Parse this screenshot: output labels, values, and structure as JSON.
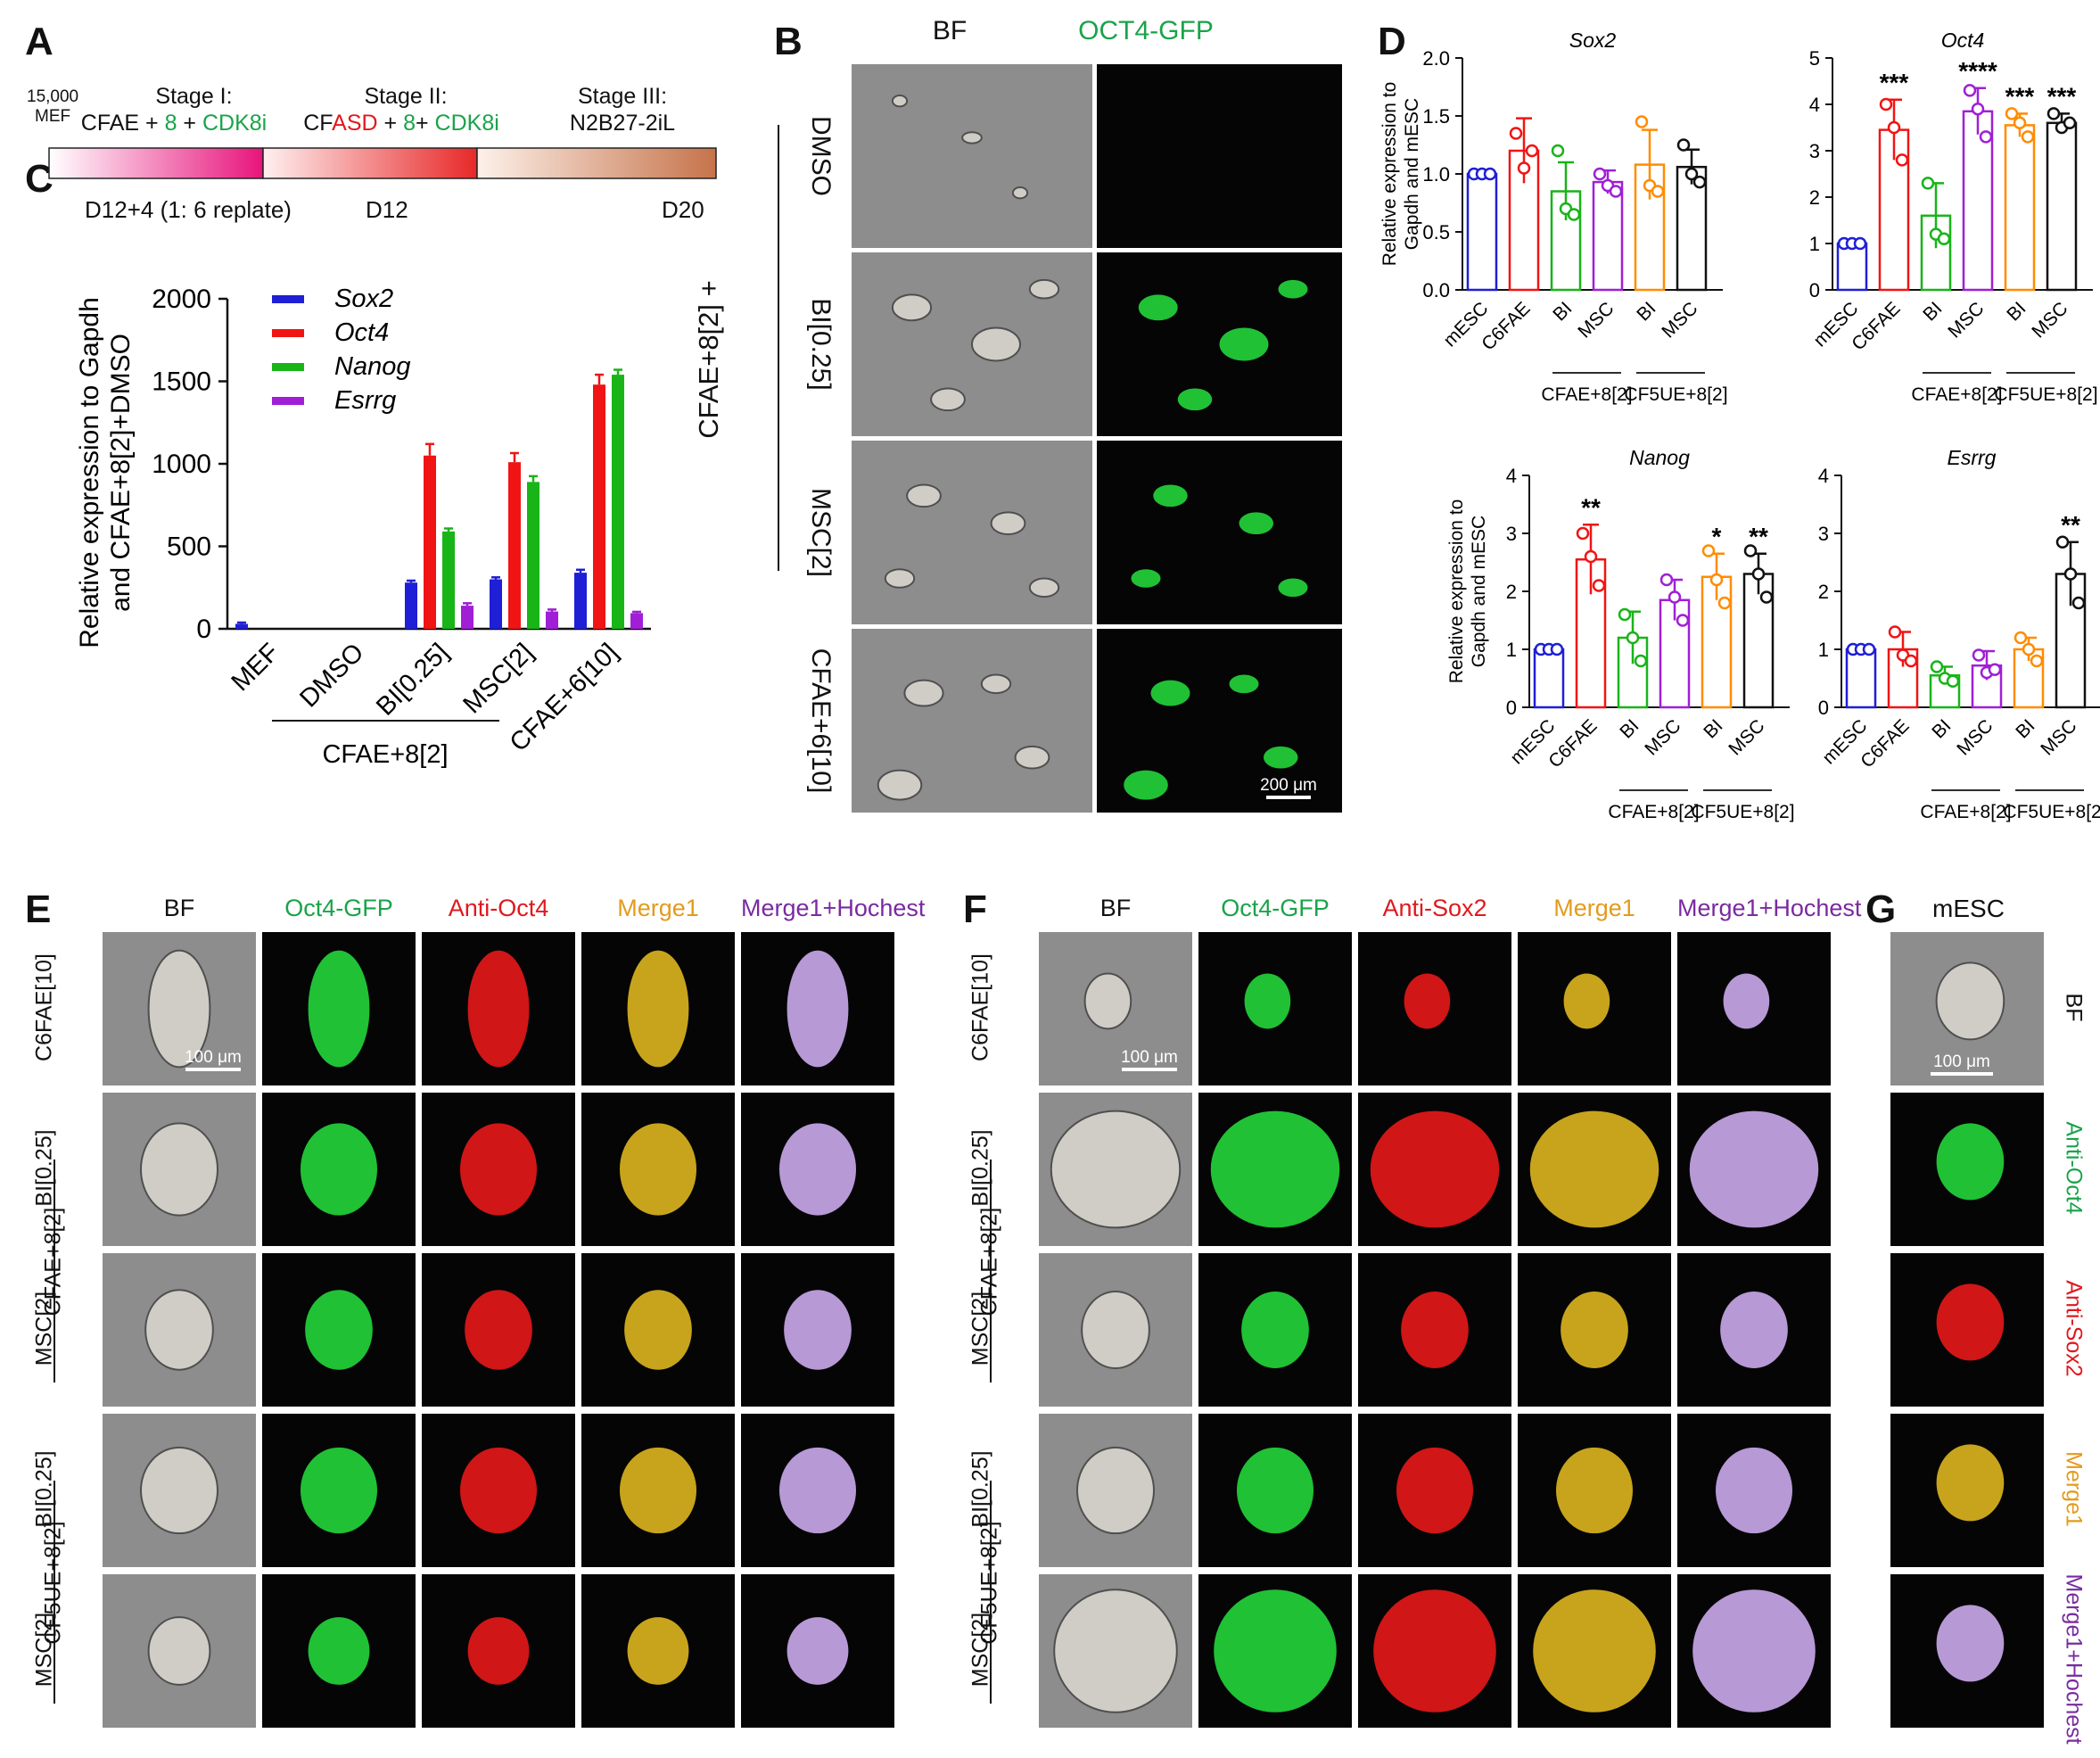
{
  "panel_labels": {
    "A": "A",
    "B": "B",
    "C": "C",
    "D": "D",
    "E": "E",
    "F": "F",
    "G": "G"
  },
  "panelA": {
    "start": "15,000\nMEF",
    "stage1_title": "Stage I:",
    "stage1_parts": [
      {
        "t": "CFAE + ",
        "c": "#111111"
      },
      {
        "t": "8",
        "c": "#1aa34a"
      },
      {
        "t": " + ",
        "c": "#111111"
      },
      {
        "t": "CDK8i",
        "c": "#1aa34a"
      }
    ],
    "stage2_title": "Stage II:",
    "stage2_parts": [
      {
        "t": "CF",
        "c": "#111111"
      },
      {
        "t": "ASD",
        "c": "#e0191f"
      },
      {
        "t": " + ",
        "c": "#111111"
      },
      {
        "t": "8",
        "c": "#1aa34a"
      },
      {
        "t": "+ ",
        "c": "#111111"
      },
      {
        "t": "CDK8i",
        "c": "#1aa34a"
      }
    ],
    "stage3_title": "Stage III:",
    "stage3_sub": "N2B27-2iL",
    "bottom_labels": [
      "D12+4 (1: 6 replate)",
      "D12",
      "D20"
    ]
  },
  "panelB": {
    "col_headers": [
      "BF",
      "OCT4-GFP"
    ],
    "col_header_colors": [
      "#111111",
      "#1aa34a"
    ],
    "row_labels": [
      "DMSO",
      "BI[0.25]",
      "MSC[2]",
      "CFAE+6[10]"
    ],
    "group_label": "CFAE+8[2] +",
    "scale": "200 μm"
  },
  "panelE": {
    "col_headers": [
      "BF",
      "Oct4-GFP",
      "Anti-Oct4",
      "Merge1",
      "Merge1+Hochest"
    ],
    "col_header_colors": [
      "#111111",
      "#1aa34a",
      "#e0191f",
      "#e39b1c",
      "#7a2aa0"
    ],
    "row_labels": [
      "C6FAE[10]",
      "BI[0.25]",
      "MSC[2]",
      "BI[0.25]",
      "MSC[2]"
    ],
    "group_labels": [
      "CFAE+8[2]",
      "CF5UE+8[2]"
    ],
    "scale": "100 μm"
  },
  "panelF": {
    "col_headers": [
      "BF",
      "Oct4-GFP",
      "Anti-Sox2",
      "Merge1",
      "Merge1+Hochest"
    ],
    "col_header_colors": [
      "#111111",
      "#1aa34a",
      "#e0191f",
      "#e39b1c",
      "#7a2aa0"
    ],
    "row_labels": [
      "C6FAE[10]",
      "BI[0.25]",
      "MSC[2]",
      "BI[0.25]",
      "MSC[2]"
    ],
    "group_labels": [
      "CFAE+8[2]",
      "CF5UE+8[2]"
    ],
    "scale": "100 μm"
  },
  "panelG": {
    "title": "mESC",
    "row_labels": [
      "BF",
      "Anti-Oct4",
      "Anti-Sox2",
      "Merge1",
      "Merge1+Hochest"
    ],
    "row_label_colors": [
      "#111111",
      "#1aa34a",
      "#e0191f",
      "#e39b1c",
      "#7a2aa0"
    ],
    "scale": "100 μm"
  },
  "chart_data": [
    {
      "panel": "C",
      "type": "bar",
      "ylabel_line1": "Relative expression to Gapdh",
      "ylabel_line2": "and  CFAE+8[2]+DMSO",
      "ylim": [
        0,
        2000
      ],
      "yticks": [
        0,
        500,
        1000,
        1500,
        2000
      ],
      "categories": [
        "MEF",
        "DMSO",
        "BI[0.25]",
        "MSC[2]",
        "CFAE+6[10]"
      ],
      "group_label": "CFAE+8[2]",
      "legend_position": "top-left",
      "series": [
        {
          "name": "Sox2",
          "color": "#1f1fd6",
          "values": [
            30,
            0,
            280,
            300,
            340
          ],
          "err": [
            8,
            0,
            12,
            12,
            18
          ]
        },
        {
          "name": "Oct4",
          "color": "#f01414",
          "values": [
            0,
            0,
            1050,
            1010,
            1480
          ],
          "err": [
            0,
            0,
            70,
            55,
            60
          ]
        },
        {
          "name": "Nanog",
          "color": "#18b418",
          "values": [
            0,
            0,
            590,
            890,
            1540
          ],
          "err": [
            0,
            0,
            18,
            35,
            30
          ]
        },
        {
          "name": "Esrrg",
          "color": "#a01fd6",
          "values": [
            0,
            0,
            140,
            105,
            95
          ],
          "err": [
            0,
            0,
            15,
            12,
            8
          ]
        }
      ]
    },
    {
      "panel": "D",
      "type": "bar",
      "title": "Sox2",
      "ylabel_line1": "Relative  expression to",
      "ylabel_line2": "Gapdh and mESC",
      "ylim": [
        0,
        2.0
      ],
      "yticks": [
        "0.0",
        "0.5",
        "1.0",
        "1.5",
        "2.0"
      ],
      "categories": [
        "mESC",
        "C6FAE",
        "BI",
        "MSC",
        "BI",
        "MSC"
      ],
      "colors": [
        "#1f1fd6",
        "#f01414",
        "#18b418",
        "#a01fd6",
        "#ff8c00",
        "#111111"
      ],
      "values": [
        1.0,
        1.2,
        0.85,
        0.93,
        1.08,
        1.06
      ],
      "err": [
        0.02,
        0.28,
        0.25,
        0.1,
        0.3,
        0.15
      ],
      "points": [
        [
          1.0,
          1.0,
          1.0
        ],
        [
          1.35,
          1.05,
          1.2
        ],
        [
          1.2,
          0.7,
          0.65
        ],
        [
          1.0,
          0.9,
          0.85
        ],
        [
          1.45,
          0.9,
          0.85
        ],
        [
          1.25,
          1.0,
          0.93
        ]
      ],
      "sig": [
        "",
        "",
        "",
        "",
        "",
        ""
      ],
      "groups": [
        "CFAE+8[2]",
        "CF5UE+8[2]"
      ]
    },
    {
      "panel": "D",
      "type": "bar",
      "title": "Oct4",
      "ylim": [
        0,
        5
      ],
      "yticks": [
        "0",
        "1",
        "2",
        "3",
        "4",
        "5"
      ],
      "categories": [
        "mESC",
        "C6FAE",
        "BI",
        "MSC",
        "BI",
        "MSC"
      ],
      "colors": [
        "#1f1fd6",
        "#f01414",
        "#18b418",
        "#a01fd6",
        "#ff8c00",
        "#111111"
      ],
      "values": [
        1.0,
        3.45,
        1.6,
        3.85,
        3.55,
        3.6
      ],
      "err": [
        0.02,
        0.65,
        0.7,
        0.5,
        0.25,
        0.2
      ],
      "points": [
        [
          1.0,
          1.0,
          1.0
        ],
        [
          4.0,
          3.5,
          2.8
        ],
        [
          2.3,
          1.2,
          1.1
        ],
        [
          4.3,
          3.9,
          3.3
        ],
        [
          3.8,
          3.6,
          3.3
        ],
        [
          3.8,
          3.5,
          3.6
        ]
      ],
      "sig": [
        "",
        "***",
        "",
        "****",
        "***",
        "***"
      ],
      "groups": [
        "CFAE+8[2]",
        "CF5UE+8[2]"
      ]
    },
    {
      "panel": "D",
      "type": "bar",
      "title": "Nanog",
      "ylabel_line1": "Relative  expression to",
      "ylabel_line2": "Gapdh and mESC",
      "ylim": [
        0,
        4
      ],
      "yticks": [
        "0",
        "1",
        "2",
        "3",
        "4"
      ],
      "categories": [
        "mESC",
        "C6FAE",
        "BI",
        "MSC",
        "BI",
        "MSC"
      ],
      "colors": [
        "#1f1fd6",
        "#f01414",
        "#18b418",
        "#a01fd6",
        "#ff8c00",
        "#111111"
      ],
      "values": [
        1.0,
        2.55,
        1.2,
        1.85,
        2.25,
        2.3
      ],
      "err": [
        0.02,
        0.6,
        0.45,
        0.35,
        0.4,
        0.35
      ],
      "points": [
        [
          1.0,
          1.0,
          1.0
        ],
        [
          3.0,
          2.6,
          2.1
        ],
        [
          1.6,
          1.2,
          0.8
        ],
        [
          2.2,
          1.9,
          1.5
        ],
        [
          2.7,
          2.2,
          1.8
        ],
        [
          2.7,
          2.3,
          1.9
        ]
      ],
      "sig": [
        "",
        "**",
        "",
        "",
        "*",
        "**"
      ],
      "groups": [
        "CFAE+8[2]",
        "CF5UE+8[2]"
      ]
    },
    {
      "panel": "D",
      "type": "bar",
      "title": "Esrrg",
      "ylim": [
        0,
        4
      ],
      "yticks": [
        "0",
        "1",
        "2",
        "3",
        "4"
      ],
      "categories": [
        "mESC",
        "C6FAE",
        "BI",
        "MSC",
        "BI",
        "MSC"
      ],
      "colors": [
        "#1f1fd6",
        "#f01414",
        "#18b418",
        "#a01fd6",
        "#ff8c00",
        "#111111"
      ],
      "values": [
        1.0,
        1.0,
        0.55,
        0.72,
        1.0,
        2.3
      ],
      "err": [
        0.02,
        0.3,
        0.15,
        0.25,
        0.2,
        0.55
      ],
      "points": [
        [
          1.0,
          1.0,
          1.0
        ],
        [
          1.3,
          0.9,
          0.8
        ],
        [
          0.7,
          0.5,
          0.45
        ],
        [
          0.9,
          0.6,
          0.65
        ],
        [
          1.2,
          1.0,
          0.8
        ],
        [
          2.85,
          2.3,
          1.8
        ]
      ],
      "sig": [
        "",
        "",
        "",
        "",
        "",
        "**"
      ],
      "groups": [
        "CFAE+8[2]",
        "CF5UE+8[2]"
      ]
    }
  ]
}
